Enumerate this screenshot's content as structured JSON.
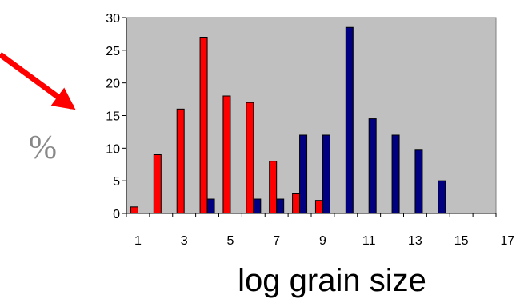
{
  "chart_data": {
    "type": "bar",
    "title": "",
    "xlabel": "log grain size",
    "ylabel": "%",
    "ylim": [
      0,
      30
    ],
    "yticks": [
      "0",
      "5",
      "10",
      "15",
      "20",
      "25",
      "30"
    ],
    "xtick_labels": [
      "1",
      "3",
      "5",
      "7",
      "9",
      "11",
      "13",
      "15",
      "17"
    ],
    "categories": [
      "1",
      "2",
      "3",
      "4",
      "5",
      "6",
      "7",
      "8",
      "9",
      "10",
      "11",
      "12",
      "13",
      "14",
      "15",
      "16"
    ],
    "series": [
      {
        "color": "#ff0000",
        "values": [
          1,
          9,
          16,
          27,
          18,
          17,
          8,
          3,
          2,
          0,
          0,
          0,
          0,
          0,
          0,
          0
        ]
      },
      {
        "color": "#000080",
        "values": [
          0,
          0,
          0,
          2.2,
          0,
          2.2,
          2.2,
          12,
          12,
          28.5,
          14.5,
          12,
          9.7,
          5,
          0,
          0
        ]
      }
    ],
    "plot_background": "#c0c0c0",
    "grid": false,
    "legend": "none",
    "annotations": [
      {
        "type": "arrow",
        "color": "#ff0000",
        "description": "red-arrow-pointing-to-y-axis"
      }
    ]
  }
}
